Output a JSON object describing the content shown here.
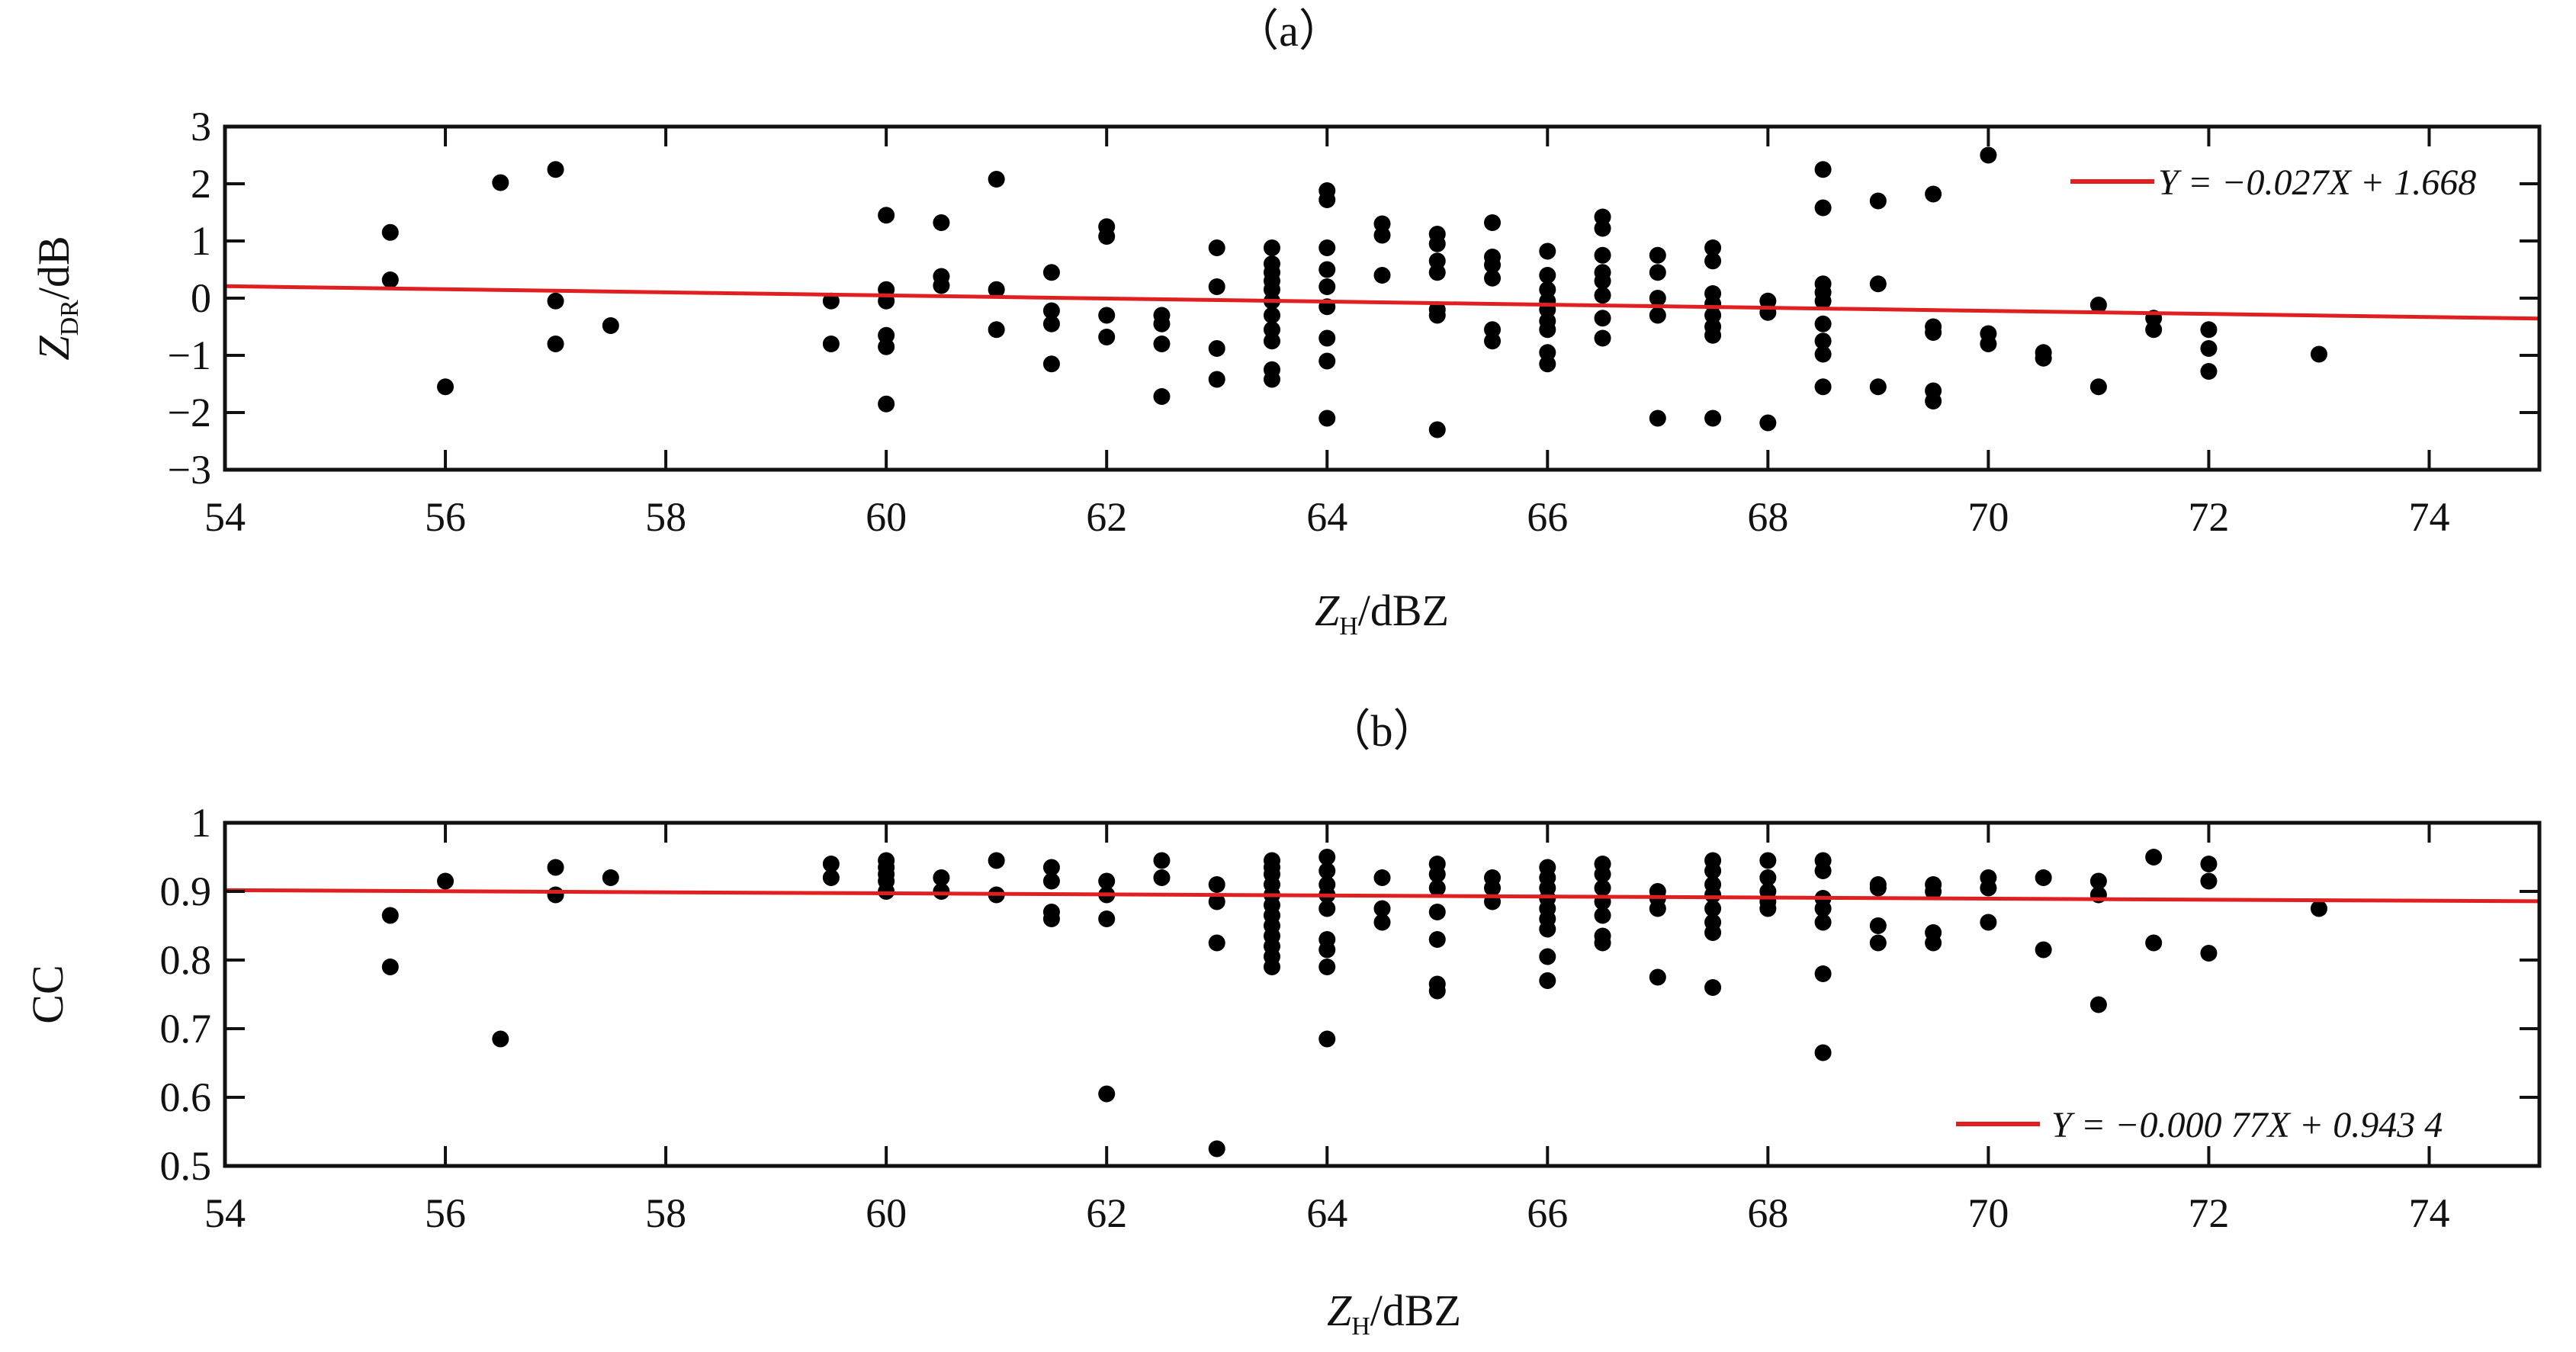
{
  "chart_data": [
    {
      "type": "scatter",
      "panel_label": "（a）",
      "xlabel_main": "Z",
      "xlabel_sub": "H",
      "xlabel_unit": "/dBZ",
      "ylabel_main": "Z",
      "ylabel_sub": "DR",
      "ylabel_unit": "/dB",
      "xlim": [
        54,
        75
      ],
      "ylim": [
        -3,
        3
      ],
      "xticks": [
        54,
        56,
        58,
        60,
        62,
        64,
        66,
        68,
        70,
        72,
        74
      ],
      "yticks": [
        -3,
        -2,
        -1,
        0,
        1,
        2,
        3
      ],
      "legend_position": "top-right",
      "fit": {
        "label": "Y = −0.027X + 1.668",
        "slope": -0.027,
        "intercept": 1.668,
        "color": "#e02020"
      },
      "point_color": "#000000",
      "points": [
        [
          55.5,
          1.15
        ],
        [
          55.5,
          0.32
        ],
        [
          56,
          -1.55
        ],
        [
          56.5,
          2.02
        ],
        [
          57,
          2.25
        ],
        [
          57,
          -0.05
        ],
        [
          57,
          -0.8
        ],
        [
          57.5,
          -0.48
        ],
        [
          59.5,
          -0.05
        ],
        [
          59.5,
          -0.8
        ],
        [
          60,
          1.45
        ],
        [
          60,
          0.15
        ],
        [
          60,
          -0.05
        ],
        [
          60,
          -0.65
        ],
        [
          60,
          -0.85
        ],
        [
          60,
          -1.85
        ],
        [
          60.5,
          1.32
        ],
        [
          60.5,
          0.38
        ],
        [
          60.5,
          0.22
        ],
        [
          61,
          2.08
        ],
        [
          61,
          0.15
        ],
        [
          61,
          -0.55
        ],
        [
          61.5,
          0.45
        ],
        [
          61.5,
          -0.22
        ],
        [
          61.5,
          -0.45
        ],
        [
          61.5,
          -1.15
        ],
        [
          62,
          1.25
        ],
        [
          62,
          1.08
        ],
        [
          62,
          -0.3
        ],
        [
          62,
          -0.68
        ],
        [
          62.5,
          -0.3
        ],
        [
          62.5,
          -0.45
        ],
        [
          62.5,
          -0.8
        ],
        [
          62.5,
          -1.72
        ],
        [
          63,
          0.88
        ],
        [
          63,
          0.2
        ],
        [
          63,
          -0.88
        ],
        [
          63,
          -1.42
        ],
        [
          63.5,
          0.88
        ],
        [
          63.5,
          0.6
        ],
        [
          63.5,
          0.45
        ],
        [
          63.5,
          0.3
        ],
        [
          63.5,
          0.15
        ],
        [
          63.5,
          -0.05
        ],
        [
          63.5,
          -0.3
        ],
        [
          63.5,
          -0.55
        ],
        [
          63.5,
          -0.75
        ],
        [
          63.5,
          -1.25
        ],
        [
          63.5,
          -1.42
        ],
        [
          64,
          1.88
        ],
        [
          64,
          1.72
        ],
        [
          64,
          0.88
        ],
        [
          64,
          0.5
        ],
        [
          64,
          0.2
        ],
        [
          64,
          -0.15
        ],
        [
          64,
          -0.7
        ],
        [
          64,
          -1.1
        ],
        [
          64,
          -2.1
        ],
        [
          64.5,
          1.3
        ],
        [
          64.5,
          1.1
        ],
        [
          64.5,
          0.4
        ],
        [
          65,
          1.12
        ],
        [
          65,
          0.95
        ],
        [
          65,
          0.65
        ],
        [
          65,
          0.45
        ],
        [
          65,
          -0.2
        ],
        [
          65,
          -0.3
        ],
        [
          65,
          -2.3
        ],
        [
          65.5,
          1.32
        ],
        [
          65.5,
          0.72
        ],
        [
          65.5,
          0.58
        ],
        [
          65.5,
          0.35
        ],
        [
          65.5,
          -0.55
        ],
        [
          65.5,
          -0.75
        ],
        [
          66,
          0.82
        ],
        [
          66,
          0.4
        ],
        [
          66,
          0.15
        ],
        [
          66,
          -0.05
        ],
        [
          66,
          -0.2
        ],
        [
          66,
          -0.4
        ],
        [
          66,
          -0.55
        ],
        [
          66,
          -0.95
        ],
        [
          66,
          -1.15
        ],
        [
          66.5,
          1.42
        ],
        [
          66.5,
          1.22
        ],
        [
          66.5,
          0.75
        ],
        [
          66.5,
          0.45
        ],
        [
          66.5,
          0.3
        ],
        [
          66.5,
          0.05
        ],
        [
          66.5,
          -0.35
        ],
        [
          66.5,
          -0.7
        ],
        [
          67,
          0.75
        ],
        [
          67,
          0.45
        ],
        [
          67,
          0.0
        ],
        [
          67,
          -0.3
        ],
        [
          67,
          -2.1
        ],
        [
          67.5,
          0.88
        ],
        [
          67.5,
          0.65
        ],
        [
          67.5,
          0.08
        ],
        [
          67.5,
          -0.1
        ],
        [
          67.5,
          -0.3
        ],
        [
          67.5,
          -0.5
        ],
        [
          67.5,
          -0.65
        ],
        [
          67.5,
          -2.1
        ],
        [
          68,
          -0.05
        ],
        [
          68,
          -0.25
        ],
        [
          68,
          -2.18
        ],
        [
          68.5,
          2.25
        ],
        [
          68.5,
          1.58
        ],
        [
          68.5,
          0.25
        ],
        [
          68.5,
          0.1
        ],
        [
          68.5,
          -0.05
        ],
        [
          68.5,
          -0.45
        ],
        [
          68.5,
          -0.75
        ],
        [
          68.5,
          -0.98
        ],
        [
          68.5,
          -1.55
        ],
        [
          69,
          1.7
        ],
        [
          69,
          0.25
        ],
        [
          69,
          -1.55
        ],
        [
          69.5,
          1.82
        ],
        [
          69.5,
          -0.5
        ],
        [
          69.5,
          -0.6
        ],
        [
          69.5,
          -1.62
        ],
        [
          69.5,
          -1.8
        ],
        [
          70,
          2.5
        ],
        [
          70,
          -0.62
        ],
        [
          70,
          -0.8
        ],
        [
          70.5,
          -0.95
        ],
        [
          70.5,
          -1.05
        ],
        [
          71,
          -0.12
        ],
        [
          71,
          -1.55
        ],
        [
          71.5,
          -0.35
        ],
        [
          71.5,
          -0.55
        ],
        [
          72,
          -0.55
        ],
        [
          72,
          -0.88
        ],
        [
          72,
          -1.28
        ],
        [
          73,
          -0.98
        ]
      ]
    },
    {
      "type": "scatter",
      "panel_label": "（b）",
      "xlabel_main": "Z",
      "xlabel_sub": "H",
      "xlabel_unit": "/dBZ",
      "ylabel": "CC",
      "xlim": [
        54,
        75
      ],
      "ylim": [
        0.5,
        1.0
      ],
      "xticks": [
        54,
        56,
        58,
        60,
        62,
        64,
        66,
        68,
        70,
        72,
        74
      ],
      "yticks": [
        0.5,
        0.6,
        0.7,
        0.8,
        0.9,
        1.0
      ],
      "ytick_labels": [
        "0.5",
        "0.6",
        "0.7",
        "0.8",
        "0.9",
        "1"
      ],
      "legend_position": "bottom-right",
      "fit": {
        "label": "Y = −0.000 77X + 0.943 4",
        "slope": -0.00077,
        "intercept": 0.9434,
        "color": "#e02020"
      },
      "point_color": "#000000",
      "points": [
        [
          55.5,
          0.865
        ],
        [
          55.5,
          0.79
        ],
        [
          56,
          0.915
        ],
        [
          56.5,
          0.685
        ],
        [
          57,
          0.935
        ],
        [
          57,
          0.895
        ],
        [
          57.5,
          0.92
        ],
        [
          59.5,
          0.94
        ],
        [
          59.5,
          0.92
        ],
        [
          60,
          0.945
        ],
        [
          60,
          0.935
        ],
        [
          60,
          0.925
        ],
        [
          60,
          0.915
        ],
        [
          60,
          0.9
        ],
        [
          60.5,
          0.92
        ],
        [
          60.5,
          0.9
        ],
        [
          61,
          0.945
        ],
        [
          61,
          0.895
        ],
        [
          61.5,
          0.935
        ],
        [
          61.5,
          0.915
        ],
        [
          61.5,
          0.87
        ],
        [
          61.5,
          0.86
        ],
        [
          62,
          0.915
        ],
        [
          62,
          0.895
        ],
        [
          62,
          0.86
        ],
        [
          62,
          0.605
        ],
        [
          62.5,
          0.945
        ],
        [
          62.5,
          0.92
        ],
        [
          63,
          0.91
        ],
        [
          63,
          0.885
        ],
        [
          63,
          0.825
        ],
        [
          63,
          0.525
        ],
        [
          63.5,
          0.945
        ],
        [
          63.5,
          0.935
        ],
        [
          63.5,
          0.925
        ],
        [
          63.5,
          0.91
        ],
        [
          63.5,
          0.895
        ],
        [
          63.5,
          0.88
        ],
        [
          63.5,
          0.865
        ],
        [
          63.5,
          0.85
        ],
        [
          63.5,
          0.835
        ],
        [
          63.5,
          0.82
        ],
        [
          63.5,
          0.805
        ],
        [
          63.5,
          0.79
        ],
        [
          64,
          0.95
        ],
        [
          64,
          0.93
        ],
        [
          64,
          0.91
        ],
        [
          64,
          0.895
        ],
        [
          64,
          0.875
        ],
        [
          64,
          0.83
        ],
        [
          64,
          0.815
        ],
        [
          64,
          0.79
        ],
        [
          64,
          0.685
        ],
        [
          64.5,
          0.92
        ],
        [
          64.5,
          0.875
        ],
        [
          64.5,
          0.855
        ],
        [
          65,
          0.94
        ],
        [
          65,
          0.925
        ],
        [
          65,
          0.905
        ],
        [
          65,
          0.87
        ],
        [
          65,
          0.83
        ],
        [
          65,
          0.765
        ],
        [
          65,
          0.755
        ],
        [
          65.5,
          0.92
        ],
        [
          65.5,
          0.905
        ],
        [
          65.5,
          0.885
        ],
        [
          66,
          0.935
        ],
        [
          66,
          0.92
        ],
        [
          66,
          0.905
        ],
        [
          66,
          0.89
        ],
        [
          66,
          0.875
        ],
        [
          66,
          0.86
        ],
        [
          66,
          0.845
        ],
        [
          66,
          0.805
        ],
        [
          66,
          0.77
        ],
        [
          66.5,
          0.94
        ],
        [
          66.5,
          0.925
        ],
        [
          66.5,
          0.905
        ],
        [
          66.5,
          0.885
        ],
        [
          66.5,
          0.865
        ],
        [
          66.5,
          0.835
        ],
        [
          66.5,
          0.825
        ],
        [
          67,
          0.9
        ],
        [
          67,
          0.89
        ],
        [
          67,
          0.875
        ],
        [
          67,
          0.775
        ],
        [
          67.5,
          0.945
        ],
        [
          67.5,
          0.93
        ],
        [
          67.5,
          0.91
        ],
        [
          67.5,
          0.895
        ],
        [
          67.5,
          0.875
        ],
        [
          67.5,
          0.855
        ],
        [
          67.5,
          0.84
        ],
        [
          67.5,
          0.76
        ],
        [
          68,
          0.945
        ],
        [
          68,
          0.92
        ],
        [
          68,
          0.9
        ],
        [
          68,
          0.885
        ],
        [
          68,
          0.875
        ],
        [
          68.5,
          0.945
        ],
        [
          68.5,
          0.93
        ],
        [
          68.5,
          0.89
        ],
        [
          68.5,
          0.875
        ],
        [
          68.5,
          0.855
        ],
        [
          68.5,
          0.78
        ],
        [
          68.5,
          0.665
        ],
        [
          69,
          0.91
        ],
        [
          69,
          0.905
        ],
        [
          69,
          0.85
        ],
        [
          69,
          0.825
        ],
        [
          69.5,
          0.91
        ],
        [
          69.5,
          0.9
        ],
        [
          69.5,
          0.84
        ],
        [
          69.5,
          0.825
        ],
        [
          70,
          0.92
        ],
        [
          70,
          0.905
        ],
        [
          70,
          0.855
        ],
        [
          70.5,
          0.92
        ],
        [
          70.5,
          0.815
        ],
        [
          71,
          0.915
        ],
        [
          71,
          0.895
        ],
        [
          71,
          0.735
        ],
        [
          71.5,
          0.95
        ],
        [
          71.5,
          0.825
        ],
        [
          72,
          0.94
        ],
        [
          72,
          0.915
        ],
        [
          72,
          0.81
        ],
        [
          73,
          0.875
        ]
      ]
    }
  ]
}
